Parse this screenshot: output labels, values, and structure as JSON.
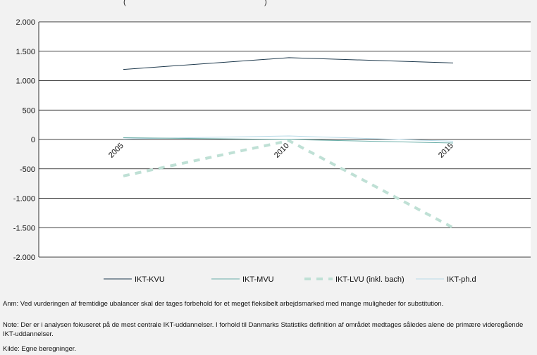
{
  "chart_data": {
    "type": "line",
    "title_fragment": "(",
    "title_fragment_end": ")",
    "categories": [
      "2005",
      "2010",
      "2015"
    ],
    "ylim": [
      -2000,
      2000
    ],
    "y_ticks": [
      2000,
      1500,
      1000,
      500,
      0,
      -500,
      -1000,
      -1500,
      -2000
    ],
    "y_tick_labels": [
      "2.000",
      "1.500",
      "1.000",
      "500",
      "0",
      "-500",
      "-1.000",
      "-1.500",
      "-2.000"
    ],
    "grid": true,
    "legend_position": "bottom",
    "series": [
      {
        "name": "IKT-KVU",
        "values": [
          1190,
          1390,
          1300
        ],
        "color": "#1f3a4d",
        "style": "solid",
        "width": 1
      },
      {
        "name": "IKT-MVU",
        "values": [
          30,
          0,
          -60
        ],
        "color": "#6aaea8",
        "style": "solid",
        "width": 1
      },
      {
        "name": "IKT-LVU (inkl. bach)",
        "values": [
          -620,
          -20,
          -1500
        ],
        "color": "#bfe0d5",
        "style": "dashed",
        "width": 4
      },
      {
        "name": "IKT-ph.d",
        "values": [
          10,
          60,
          -30
        ],
        "color": "#b8dbe8",
        "style": "solid",
        "width": 1
      }
    ]
  },
  "notes": {
    "anm": "Anm: Ved vurderingen af fremtidige ubalancer skal der tages forbehold for et meget fleksibelt arbejdsmarked med mange muligheder for substitution.",
    "note": "Note: Der er i analysen fokuseret på de mest centrale IKT-uddannelser. I forhold til Danmarks Statistiks definition af området medtages således alene de primære videregående IKT-uddannelser.",
    "kilde": "Kilde: Egne beregninger."
  }
}
